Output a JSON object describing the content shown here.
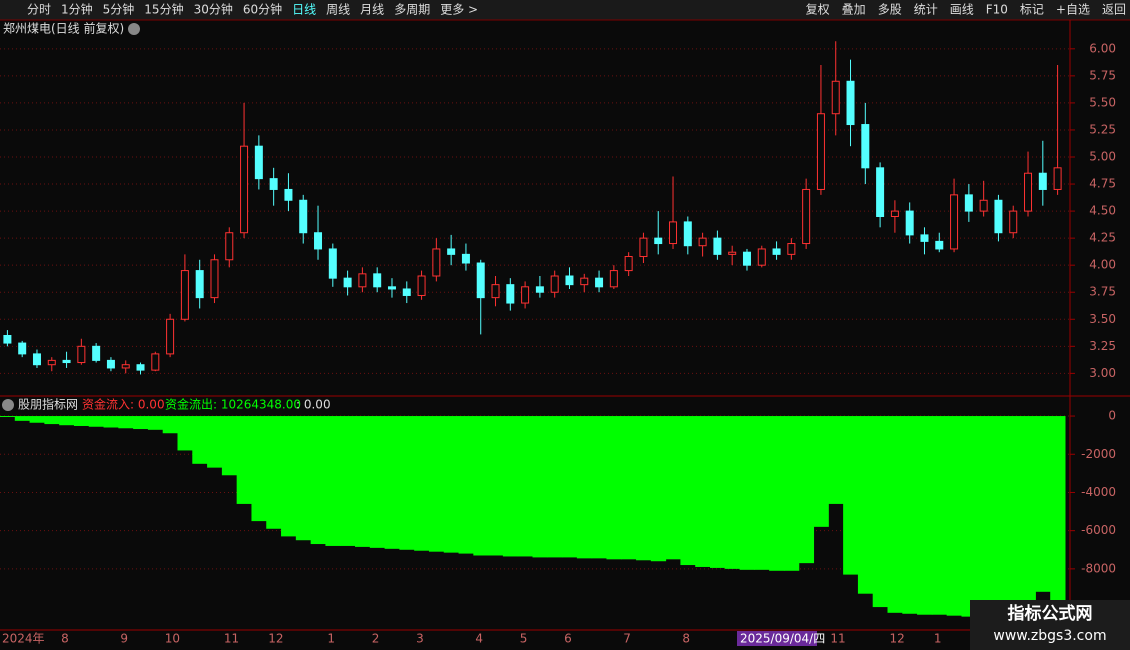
{
  "toolbar": {
    "left": [
      "分时",
      "1分钟",
      "5分钟",
      "15分钟",
      "30分钟",
      "60分钟",
      "日线",
      "周线",
      "月线",
      "多周期",
      "更多 >"
    ],
    "right": [
      "复权",
      "叠加",
      "多股",
      "统计",
      "画线",
      "F10",
      "标记",
      "+自选",
      "返回"
    ]
  },
  "chart_data": [
    {
      "type": "candlestick",
      "title": "郑州煤电(日线 前复权)",
      "up_color": "#ff3232",
      "down_color": "#54ffff",
      "categories": [
        "2024年",
        null,
        null,
        null,
        "8",
        null,
        null,
        null,
        "9",
        null,
        null,
        "10",
        null,
        null,
        null,
        "11",
        null,
        null,
        "12",
        null,
        null,
        null,
        "1",
        null,
        null,
        "2",
        null,
        null,
        "3",
        null,
        null,
        null,
        "4",
        null,
        null,
        "5",
        null,
        null,
        "6",
        null,
        null,
        null,
        "7",
        null,
        null,
        null,
        "8",
        null,
        null,
        null,
        null,
        null,
        null,
        null,
        null,
        null,
        "11",
        null,
        null,
        null,
        "12",
        null,
        null,
        "1",
        null,
        null,
        null,
        null,
        null,
        null,
        null,
        null
      ],
      "open": [
        3.35,
        3.28,
        3.18,
        3.08,
        3.12,
        3.1,
        3.25,
        3.12,
        3.05,
        3.08,
        3.03,
        3.18,
        3.5,
        3.95,
        3.7,
        4.05,
        4.3,
        5.1,
        4.8,
        4.7,
        4.6,
        4.3,
        4.15,
        3.88,
        3.8,
        3.92,
        3.8,
        3.78,
        3.72,
        3.9,
        4.15,
        4.1,
        4.02,
        3.7,
        3.82,
        3.65,
        3.8,
        3.75,
        3.9,
        3.82,
        3.88,
        3.8,
        3.95,
        4.08,
        4.25,
        4.2,
        4.4,
        4.18,
        4.25,
        4.1,
        4.12,
        4.0,
        4.15,
        4.1,
        4.2,
        4.7,
        5.4,
        5.7,
        5.3,
        4.9,
        4.45,
        4.5,
        4.28,
        4.22,
        4.15,
        4.65,
        4.5,
        4.6,
        4.3,
        4.5,
        4.85,
        4.7
      ],
      "high": [
        3.4,
        3.3,
        3.22,
        3.15,
        3.2,
        3.32,
        3.28,
        3.15,
        3.12,
        3.1,
        3.2,
        3.55,
        4.1,
        4.05,
        4.1,
        4.35,
        5.5,
        5.2,
        4.9,
        4.85,
        4.65,
        4.55,
        4.2,
        3.95,
        3.98,
        3.98,
        3.88,
        3.85,
        3.95,
        4.25,
        4.28,
        4.2,
        4.05,
        3.9,
        3.88,
        3.85,
        3.9,
        3.95,
        3.98,
        3.92,
        3.95,
        4.0,
        4.12,
        4.3,
        4.5,
        4.82,
        4.45,
        4.3,
        4.32,
        4.18,
        4.15,
        4.18,
        4.22,
        4.25,
        4.8,
        5.85,
        6.07,
        5.9,
        5.5,
        4.95,
        4.6,
        4.58,
        4.35,
        4.3,
        4.8,
        4.75,
        4.78,
        4.65,
        4.55,
        5.05,
        5.15,
        5.85
      ],
      "low": [
        3.25,
        3.15,
        3.05,
        3.02,
        3.05,
        3.08,
        3.1,
        3.02,
        3.0,
        2.99,
        3.02,
        3.15,
        3.48,
        3.6,
        3.65,
        3.98,
        4.25,
        4.7,
        4.55,
        4.5,
        4.2,
        4.05,
        3.8,
        3.72,
        3.75,
        3.75,
        3.7,
        3.65,
        3.68,
        3.85,
        4.0,
        3.95,
        3.36,
        3.62,
        3.58,
        3.6,
        3.7,
        3.7,
        3.78,
        3.75,
        3.75,
        3.78,
        3.9,
        4.02,
        4.1,
        4.15,
        4.1,
        4.08,
        4.05,
        4.0,
        3.95,
        3.98,
        4.05,
        4.05,
        4.15,
        4.65,
        5.2,
        5.1,
        4.75,
        4.35,
        4.3,
        4.2,
        4.1,
        4.12,
        4.12,
        4.4,
        4.45,
        4.22,
        4.25,
        4.45,
        4.55,
        4.65
      ],
      "close": [
        3.28,
        3.18,
        3.08,
        3.12,
        3.1,
        3.25,
        3.12,
        3.05,
        3.08,
        3.03,
        3.18,
        3.5,
        3.95,
        3.7,
        4.05,
        4.3,
        5.1,
        4.8,
        4.7,
        4.6,
        4.3,
        4.15,
        3.88,
        3.8,
        3.92,
        3.8,
        3.78,
        3.72,
        3.9,
        4.15,
        4.1,
        4.02,
        3.7,
        3.82,
        3.65,
        3.8,
        3.75,
        3.9,
        3.82,
        3.88,
        3.8,
        3.95,
        4.08,
        4.25,
        4.2,
        4.4,
        4.18,
        4.25,
        4.1,
        4.12,
        4.0,
        4.15,
        4.1,
        4.2,
        4.7,
        5.4,
        5.7,
        5.3,
        4.9,
        4.45,
        4.5,
        4.28,
        4.22,
        4.15,
        4.65,
        4.5,
        4.6,
        4.3,
        4.5,
        4.85,
        4.7,
        4.9
      ],
      "ylim": [
        2.8,
        6.1
      ],
      "yticks": [
        {
          "value": 3,
          "label": "3.00"
        },
        {
          "value": 3.25,
          "label": "3.25"
        },
        {
          "value": 3.5,
          "label": "3.50"
        },
        {
          "value": 3.75,
          "label": "3.75"
        },
        {
          "value": 4,
          "label": "4.00"
        },
        {
          "value": 4.25,
          "label": "4.25"
        },
        {
          "value": 4.5,
          "label": "4.50"
        },
        {
          "value": 4.75,
          "label": "4.75"
        },
        {
          "value": 5,
          "label": "5.00"
        },
        {
          "value": 5.25,
          "label": "5.25"
        },
        {
          "value": 5.5,
          "label": "5.50"
        },
        {
          "value": 5.75,
          "label": "5.75"
        },
        {
          "value": 6,
          "label": "6.00"
        }
      ],
      "grid": true,
      "cursor_date": "2025/09/04/四"
    },
    {
      "type": "area",
      "title": "股朋指标网",
      "inflow": "资金流入: 0.00",
      "outflow": "资金流出: 10264348.00",
      "extra": ": 0.00",
      "color": "#00ff00",
      "values": [
        -50,
        -250,
        -350,
        -420,
        -480,
        -520,
        -560,
        -600,
        -640,
        -680,
        -720,
        -900,
        -1800,
        -2500,
        -2700,
        -3100,
        -4600,
        -5500,
        -5900,
        -6300,
        -6500,
        -6700,
        -6800,
        -6800,
        -6850,
        -6900,
        -6950,
        -7000,
        -7050,
        -7100,
        -7150,
        -7200,
        -7300,
        -7300,
        -7350,
        -7350,
        -7400,
        -7400,
        -7400,
        -7450,
        -7450,
        -7500,
        -7500,
        -7550,
        -7600,
        -7500,
        -7800,
        -7900,
        -7950,
        -8000,
        -8050,
        -8050,
        -8100,
        -8100,
        -7700,
        -5800,
        -4600,
        -8300,
        -9300,
        -10000,
        -10300,
        -10350,
        -10400,
        -10400,
        -10450,
        -10500,
        -10500,
        -10550,
        -10600,
        -10500,
        -9200,
        -10300
      ],
      "ylim": [
        -11200,
        160
      ],
      "yticks": [
        0,
        -2000,
        -4000,
        -6000,
        -8000
      ],
      "grid": true
    }
  ],
  "watermark": {
    "title": "指标公式网",
    "url": "www.zbgs3.com"
  }
}
